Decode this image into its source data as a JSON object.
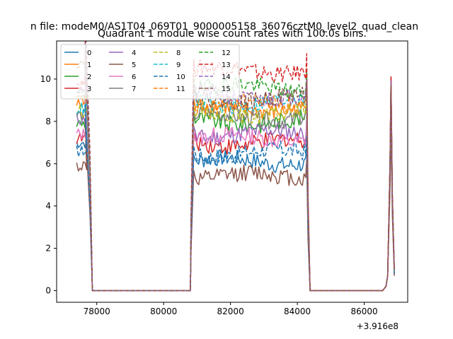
{
  "chart_data": {
    "type": "line",
    "suptitle": "n file: modeM0/AS1T04_069T01_9000005158_36076cztM0_level2_quad_clean",
    "title": "Quadrant 1 module wise count rates with 100.0s bins.",
    "xlabel": "",
    "ylabel": "",
    "offset_text": "+3.916e8",
    "xlim": [
      76800,
      87300
    ],
    "ylim": [
      -0.55,
      11.8
    ],
    "xticks": [
      78000,
      80000,
      82000,
      84000,
      86000
    ],
    "xtick_labels": [
      "78000",
      "80000",
      "82000",
      "84000",
      "86000"
    ],
    "yticks": [
      0,
      2,
      4,
      6,
      8,
      10
    ],
    "ytick_labels": [
      "0",
      "2",
      "4",
      "6",
      "8",
      "10"
    ],
    "grid": false,
    "legend_position": "top-left",
    "segments": {
      "seg1": {
        "start": 77400,
        "end": 77900
      },
      "gap1_end": 80800,
      "seg2": {
        "start": 80900,
        "end": 84300
      },
      "gap2_end": 86700,
      "seg3": {
        "start": 86800,
        "end": 86900
      }
    },
    "series": [
      {
        "name": "0",
        "color": "#1f77b4",
        "dash": false,
        "level1": 7.0,
        "level2": 6.1,
        "peak": 10.0,
        "end": 0.8
      },
      {
        "name": "1",
        "color": "#ff7f0e",
        "dash": false,
        "level1": 8.8,
        "level2": 8.6,
        "peak": 10.0,
        "end": 0.9
      },
      {
        "name": "2",
        "color": "#2ca02c",
        "dash": false,
        "level1": 7.9,
        "level2": 8.0,
        "peak": 9.8,
        "end": 0.9
      },
      {
        "name": "3",
        "color": "#d62728",
        "dash": false,
        "level1": 7.2,
        "level2": 7.0,
        "peak": 10.1,
        "end": 0.8
      },
      {
        "name": "4",
        "color": "#9467bd",
        "dash": false,
        "level1": 8.1,
        "level2": 7.4,
        "peak": 9.6,
        "end": 0.8
      },
      {
        "name": "5",
        "color": "#8c564b",
        "dash": false,
        "level1": 5.9,
        "level2": 5.4,
        "peak": 7.9,
        "end": 0.7
      },
      {
        "name": "6",
        "color": "#e377c2",
        "dash": false,
        "level1": 7.4,
        "level2": 7.2,
        "peak": 9.4,
        "end": 0.8
      },
      {
        "name": "7",
        "color": "#7f7f7f",
        "dash": false,
        "level1": 8.3,
        "level2": 8.2,
        "peak": 9.5,
        "end": 0.9
      },
      {
        "name": "8",
        "color": "#bcbd22",
        "dash": true,
        "level1": 8.5,
        "level2": 8.4,
        "peak": 9.7,
        "end": 0.9
      },
      {
        "name": "9",
        "color": "#17becf",
        "dash": true,
        "level1": 8.6,
        "level2": 8.9,
        "peak": 9.6,
        "end": 0.9
      },
      {
        "name": "10",
        "color": "#1f77b4",
        "dash": true,
        "level1": 6.6,
        "level2": 6.5,
        "peak": 9.2,
        "end": 0.8
      },
      {
        "name": "11",
        "color": "#ff7f0e",
        "dash": true,
        "level1": 9.0,
        "level2": 8.8,
        "peak": 9.6,
        "end": 0.9
      },
      {
        "name": "12",
        "color": "#2ca02c",
        "dash": true,
        "level1": 9.3,
        "level2": 9.6,
        "peak": 9.8,
        "end": 1.0
      },
      {
        "name": "13",
        "color": "#d62728",
        "dash": true,
        "level1": 9.8,
        "level2": 10.4,
        "peak": 10.1,
        "end": 1.0
      },
      {
        "name": "14",
        "color": "#9467bd",
        "dash": true,
        "level1": 9.5,
        "level2": 9.2,
        "peak": 9.9,
        "end": 1.0
      },
      {
        "name": "15",
        "color": "#8c564b",
        "dash": true,
        "level1": 10.8,
        "level2": 9.1,
        "peak": 9.7,
        "end": 1.0
      }
    ]
  }
}
